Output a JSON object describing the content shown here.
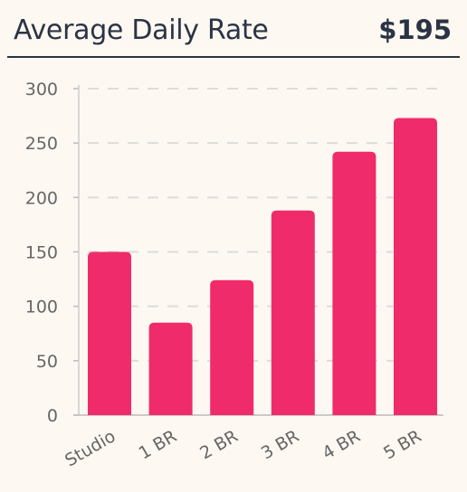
{
  "header": {
    "title": "Average Daily Rate",
    "value": "$195"
  },
  "colors": {
    "bar": "#f02b6c",
    "text": "#2b3444",
    "axis": "#666666",
    "grid": "#dcdcdc",
    "background": "#fdf8f2"
  },
  "chart_data": {
    "type": "bar",
    "categories": [
      "Studio",
      "1 BR",
      "2 BR",
      "3 BR",
      "4 BR",
      "5 BR"
    ],
    "values": [
      150,
      85,
      124,
      188,
      242,
      273
    ],
    "title": "",
    "xlabel": "",
    "ylabel": "",
    "ylim": [
      0,
      300
    ],
    "yticks": [
      0,
      50,
      100,
      150,
      200,
      250,
      300
    ],
    "grid": true
  }
}
